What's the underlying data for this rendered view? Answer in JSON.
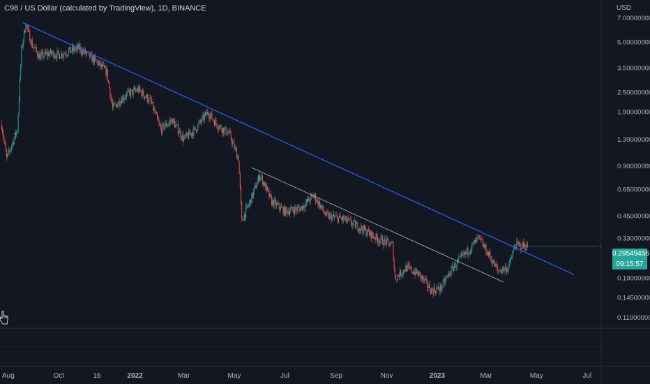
{
  "header": {
    "title": "C98 / US Dollar (calculated by TradingView), 1D, BINANCE",
    "currency": "USD"
  },
  "last_price": {
    "value": "0.29549456",
    "countdown": "09:15:57"
  },
  "colors": {
    "background": "#131722",
    "up": "#26a69a",
    "down": "#ef5350",
    "main_trendline": "#2962ff",
    "minor_trendline": "#b2b5be",
    "axis_text": "#b2b5be"
  },
  "chart_data": {
    "type": "candlestick",
    "title": "C98 / US Dollar (calculated by TradingView), 1D, BINANCE",
    "y_scale": "log",
    "ylim": [
      0.095,
      9.0
    ],
    "y_ticks": [
      {
        "value": 7.0,
        "label": "7.00000000"
      },
      {
        "value": 5.0,
        "label": "5.00000000"
      },
      {
        "value": 3.5,
        "label": "3.50000000"
      },
      {
        "value": 2.5,
        "label": "2.50000000"
      },
      {
        "value": 1.9,
        "label": "1.90000000"
      },
      {
        "value": 1.3,
        "label": "1.30000000"
      },
      {
        "value": 0.9,
        "label": "0.90000000"
      },
      {
        "value": 0.65,
        "label": "0.65000000"
      },
      {
        "value": 0.45,
        "label": "0.45000000"
      },
      {
        "value": 0.33,
        "label": "0.33000000"
      },
      {
        "value": 0.19,
        "label": "0.19000000"
      },
      {
        "value": 0.145,
        "label": "0.14500000"
      },
      {
        "value": 0.11,
        "label": "0.11000000"
      }
    ],
    "x_range": [
      "2021-07-22",
      "2023-07-18"
    ],
    "x_ticks": [
      {
        "date": "2021-08-01",
        "label": "Aug"
      },
      {
        "date": "2021-10-01",
        "label": "Oct"
      },
      {
        "date": "2021-11-16",
        "label": "16"
      },
      {
        "date": "2022-01-01",
        "label": "2022"
      },
      {
        "date": "2022-03-01",
        "label": "Mar"
      },
      {
        "date": "2022-05-01",
        "label": "May"
      },
      {
        "date": "2022-07-01",
        "label": "Jul"
      },
      {
        "date": "2022-09-01",
        "label": "Sep"
      },
      {
        "date": "2022-11-01",
        "label": "Nov"
      },
      {
        "date": "2023-01-01",
        "label": "2023"
      },
      {
        "date": "2023-03-01",
        "label": "Mar"
      },
      {
        "date": "2023-05-01",
        "label": "May"
      },
      {
        "date": "2023-07-01",
        "label": "Jul"
      }
    ],
    "price_path": [
      [
        "2021-07-24",
        1.6
      ],
      [
        "2021-07-30",
        1.0
      ],
      [
        "2021-08-05",
        1.2
      ],
      [
        "2021-08-12",
        1.5
      ],
      [
        "2021-08-17",
        4.5
      ],
      [
        "2021-08-22",
        6.5
      ],
      [
        "2021-08-30",
        4.8
      ],
      [
        "2021-09-08",
        4.1
      ],
      [
        "2021-09-20",
        4.3
      ],
      [
        "2021-10-01",
        4.2
      ],
      [
        "2021-10-12",
        4.4
      ],
      [
        "2021-10-25",
        4.6
      ],
      [
        "2021-11-05",
        4.2
      ],
      [
        "2021-11-16",
        3.8
      ],
      [
        "2021-11-28",
        3.3
      ],
      [
        "2021-12-05",
        2.0
      ],
      [
        "2021-12-20",
        2.4
      ],
      [
        "2022-01-05",
        2.6
      ],
      [
        "2022-01-20",
        2.2
      ],
      [
        "2022-02-01",
        1.5
      ],
      [
        "2022-02-15",
        1.7
      ],
      [
        "2022-03-01",
        1.3
      ],
      [
        "2022-03-15",
        1.5
      ],
      [
        "2022-03-30",
        1.9
      ],
      [
        "2022-04-10",
        1.6
      ],
      [
        "2022-04-25",
        1.4
      ],
      [
        "2022-05-06",
        1.0
      ],
      [
        "2022-05-10",
        0.42
      ],
      [
        "2022-05-20",
        0.55
      ],
      [
        "2022-06-01",
        0.8
      ],
      [
        "2022-06-15",
        0.55
      ],
      [
        "2022-07-01",
        0.48
      ],
      [
        "2022-07-20",
        0.5
      ],
      [
        "2022-08-05",
        0.6
      ],
      [
        "2022-08-20",
        0.45
      ],
      [
        "2022-09-10",
        0.43
      ],
      [
        "2022-10-01",
        0.38
      ],
      [
        "2022-10-20",
        0.33
      ],
      [
        "2022-11-08",
        0.3
      ],
      [
        "2022-11-11",
        0.19
      ],
      [
        "2022-11-25",
        0.22
      ],
      [
        "2022-12-10",
        0.2
      ],
      [
        "2022-12-25",
        0.16
      ],
      [
        "2023-01-05",
        0.165
      ],
      [
        "2023-01-20",
        0.22
      ],
      [
        "2023-02-05",
        0.27
      ],
      [
        "2023-02-20",
        0.33
      ],
      [
        "2023-03-05",
        0.26
      ],
      [
        "2023-03-15",
        0.21
      ],
      [
        "2023-03-28",
        0.22
      ],
      [
        "2023-04-05",
        0.3
      ],
      [
        "2023-04-20",
        0.2955
      ]
    ],
    "trendlines": [
      {
        "name": "main",
        "from": [
          "2021-08-18",
          6.6
        ],
        "to": [
          "2023-06-15",
          0.2
        ]
      },
      {
        "name": "minor",
        "from": [
          "2022-05-22",
          0.88
        ],
        "to": [
          "2023-03-22",
          0.18
        ]
      }
    ]
  }
}
